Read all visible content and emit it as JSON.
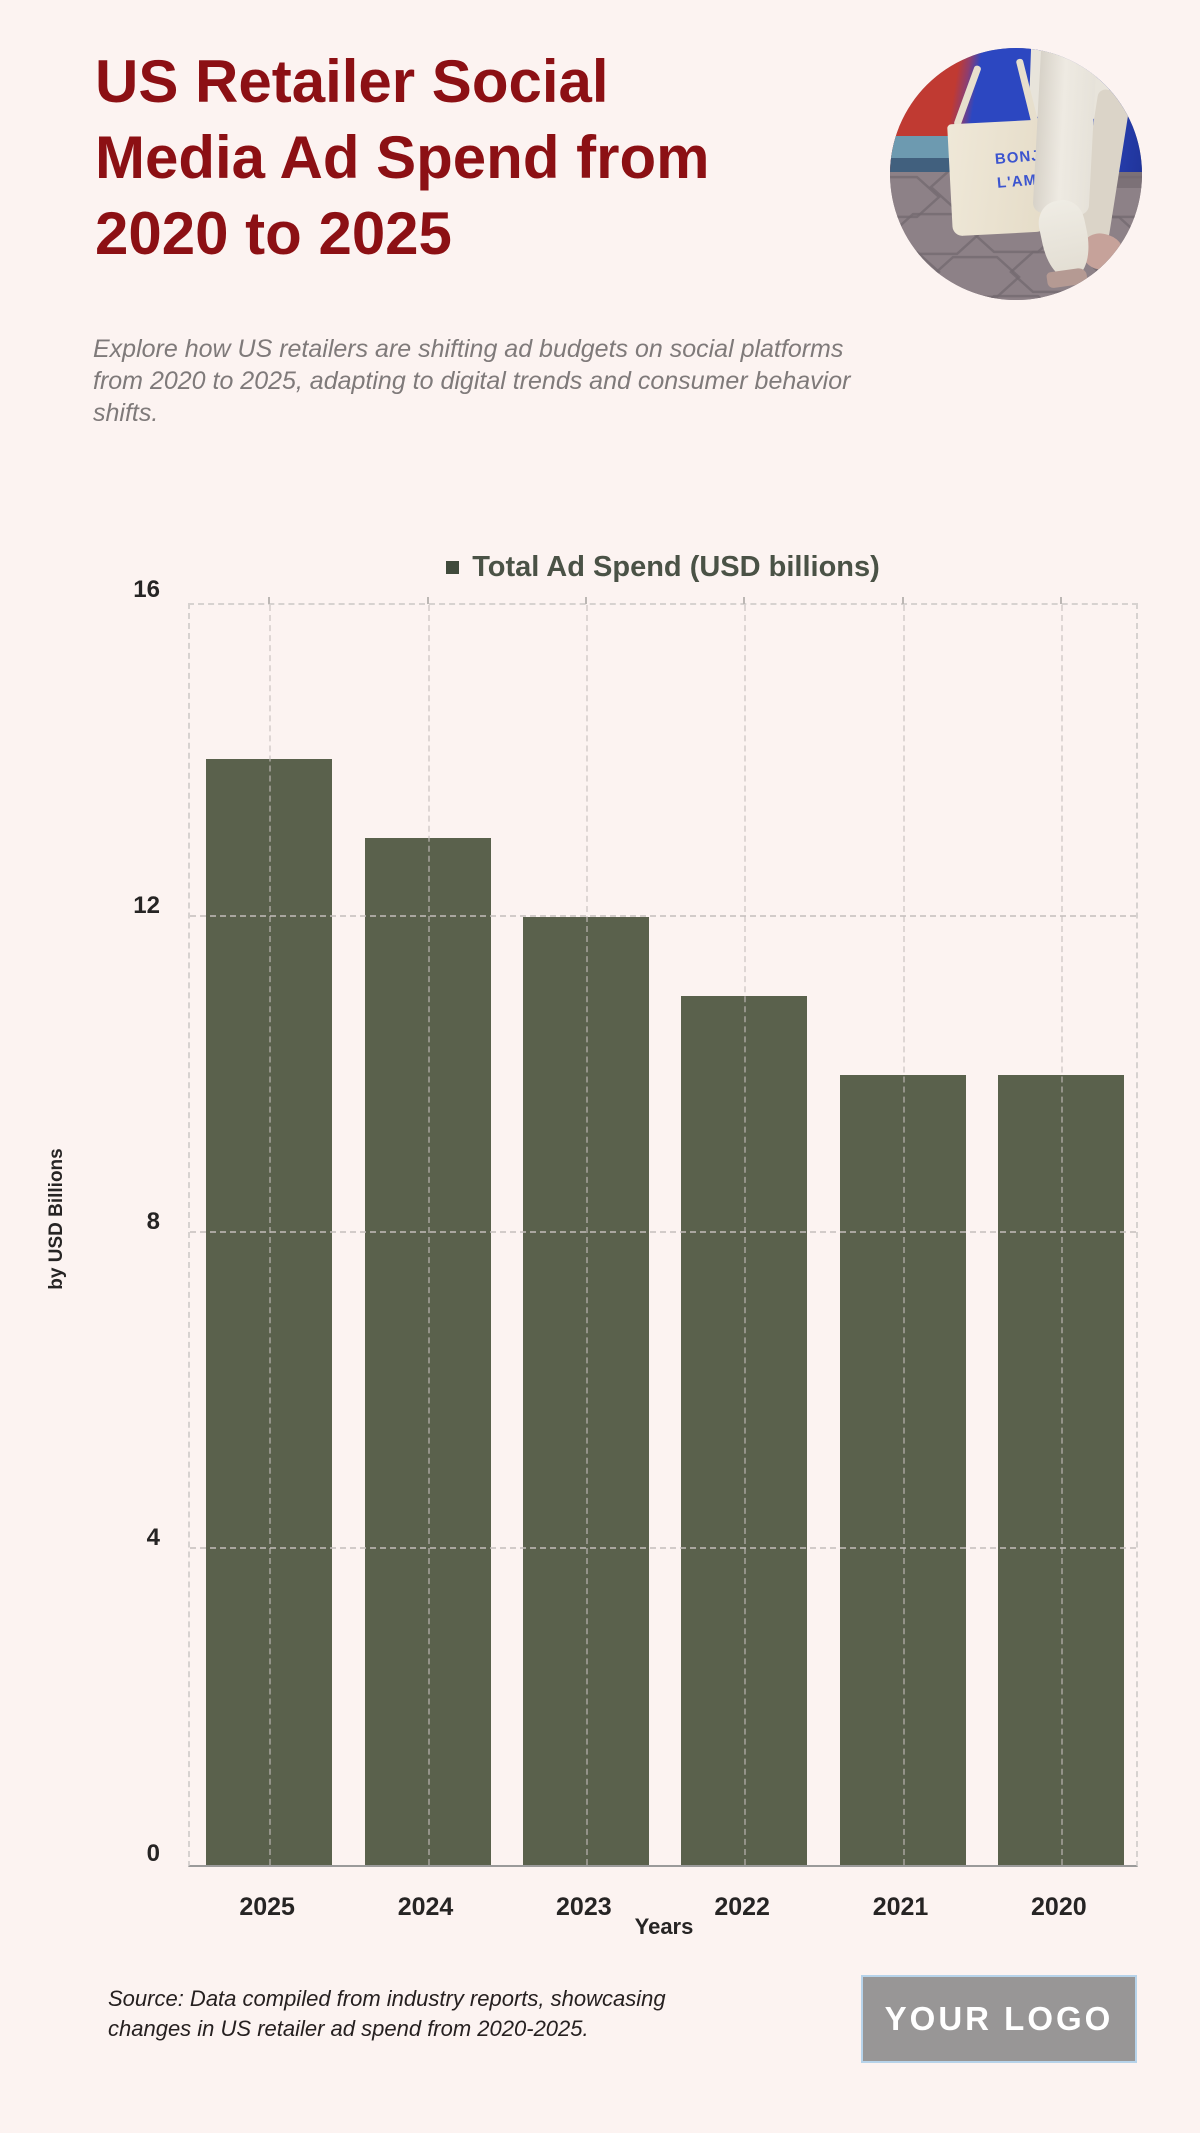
{
  "header": {
    "title": "US Retailer Social Media Ad Spend from 2020 to 2025",
    "subtitle": "Explore how US retailers are shifting ad budgets on social platforms from 2020 to 2025, adapting to digital trends and consumer behavior shifts."
  },
  "photo": {
    "bag_text_line1": "BONJOUR",
    "bag_text_line2": "L'AMOUR"
  },
  "chart_data": {
    "type": "bar",
    "legend": "Total Ad Spend (USD billions)",
    "categories": [
      "2025",
      "2024",
      "2023",
      "2022",
      "2021",
      "2020"
    ],
    "values": [
      14,
      13,
      12,
      11,
      10,
      10
    ],
    "xlabel": "Years",
    "ylabel": "by USD Billions",
    "ylim": [
      0,
      16
    ],
    "yticks": [
      0,
      4,
      8,
      12,
      16
    ],
    "grid": true,
    "legend_position": "top",
    "bar_color": "#5a614c"
  },
  "footer": {
    "source": "Source: Data compiled from industry reports, showcasing changes in US retailer ad spend from 2020-2025.",
    "logo_text": "YOUR LOGO"
  },
  "colors": {
    "background": "#fcf3f1",
    "title": "#8c1014",
    "subtitle": "#7f7a7a",
    "bar": "#5a614c",
    "legend_text": "#4a5246",
    "axis_text": "#262424",
    "gridline": "#d7d2d0",
    "axis_line": "#9a9a9a",
    "logo_background": "#989696",
    "logo_border": "#b7d3ea",
    "logo_text": "#ffffff"
  }
}
